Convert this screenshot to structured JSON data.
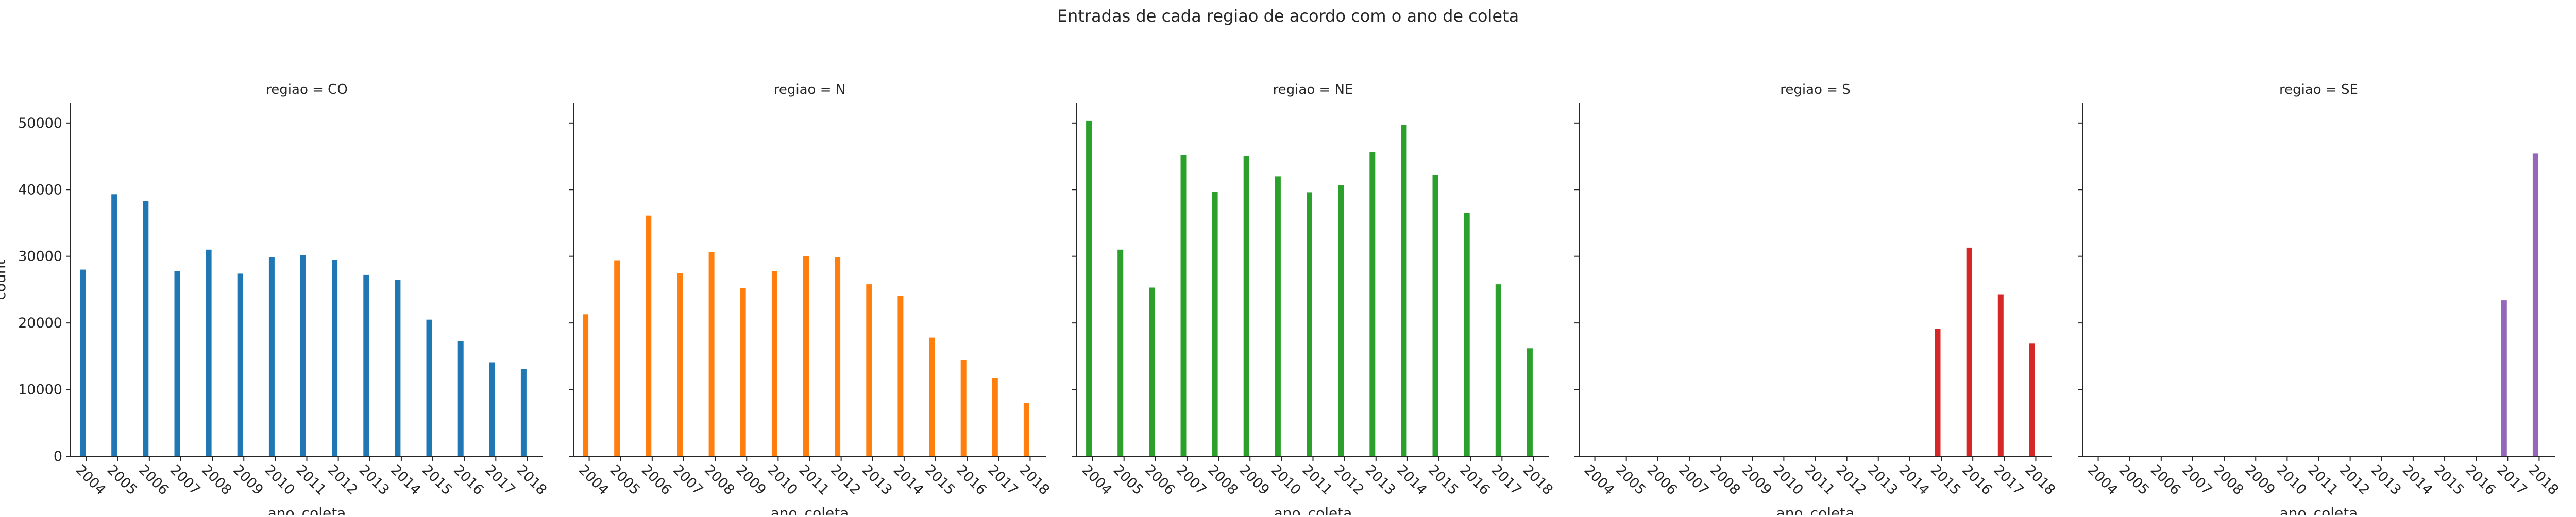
{
  "figure": {
    "suptitle": "Entradas de cada regiao de acordo com o ano de coleta"
  },
  "chart_data": {
    "type": "bar",
    "title": "Entradas de cada regiao de acordo com o ano de coleta",
    "xlabel": "ano_coleta",
    "ylabel": "count",
    "ylim": [
      0,
      53000
    ],
    "yticks": [
      0,
      10000,
      20000,
      30000,
      40000,
      50000
    ],
    "grid": false,
    "categories": [
      "2004",
      "2005",
      "2006",
      "2007",
      "2008",
      "2009",
      "2010",
      "2011",
      "2012",
      "2013",
      "2014",
      "2015",
      "2016",
      "2017",
      "2018"
    ],
    "series": [
      {
        "name": "regiao = CO",
        "color": "#1f77b4",
        "values": [
          28000,
          39300,
          38300,
          27800,
          31000,
          27400,
          29900,
          30200,
          29500,
          27200,
          26500,
          20500,
          17300,
          14100,
          13100
        ]
      },
      {
        "name": "regiao = N",
        "color": "#ff7f0e",
        "values": [
          21300,
          29400,
          36100,
          27500,
          30600,
          25200,
          27800,
          30000,
          29900,
          25800,
          24100,
          17800,
          14400,
          11700,
          8000
        ]
      },
      {
        "name": "regiao = NE",
        "color": "#2ca02c",
        "values": [
          50300,
          31000,
          25300,
          45200,
          39700,
          45100,
          42000,
          39600,
          40700,
          45600,
          49700,
          42200,
          36500,
          25800,
          16200
        ]
      },
      {
        "name": "regiao = S",
        "color": "#d62728",
        "values": [
          0,
          0,
          0,
          0,
          0,
          0,
          0,
          0,
          0,
          0,
          0,
          19100,
          31300,
          24300,
          16900
        ]
      },
      {
        "name": "regiao = SE",
        "color": "#9467bd",
        "values": [
          0,
          0,
          0,
          0,
          0,
          0,
          0,
          0,
          0,
          0,
          0,
          0,
          0,
          23400,
          45400
        ]
      }
    ]
  }
}
